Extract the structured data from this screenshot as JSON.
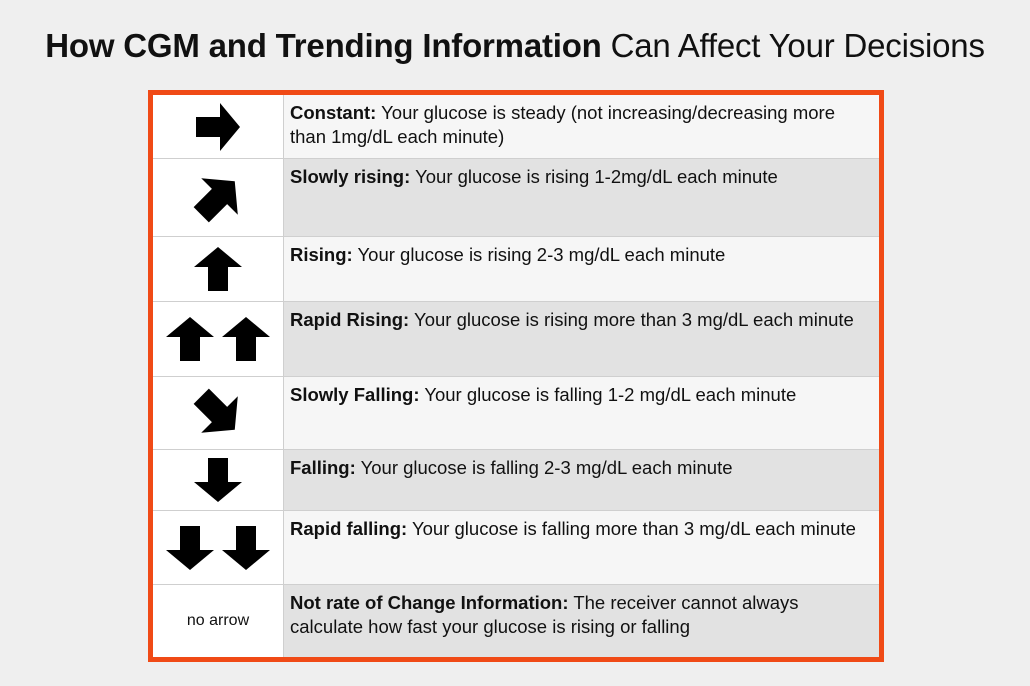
{
  "title": {
    "bold": "How CGM and Trending Information",
    "regular": "Can Affect Your Decisions"
  },
  "rows": [
    {
      "icon": "arrow-right-icon",
      "term": "Constant:",
      "desc": "Your glucose is steady (not increasing/decreasing more than 1mg/dL each minute)"
    },
    {
      "icon": "arrow-up-right-icon",
      "term": "Slowly rising:",
      "desc": "Your glucose is rising 1-2mg/dL each minute"
    },
    {
      "icon": "arrow-up-icon",
      "term": "Rising:",
      "desc": "Your glucose is rising 2-3 mg/dL each minute"
    },
    {
      "icon": "double-arrow-up-icon",
      "term": "Rapid Rising:",
      "desc": "Your glucose is rising more than 3 mg/dL each minute"
    },
    {
      "icon": "arrow-down-right-icon",
      "term": "Slowly Falling:",
      "desc": "Your glucose is falling 1-2 mg/dL each minute"
    },
    {
      "icon": "arrow-down-icon",
      "term": "Falling:",
      "desc": "Your glucose is falling 2-3 mg/dL each minute"
    },
    {
      "icon": "double-arrow-down-icon",
      "term": "Rapid falling:",
      "desc": "Your glucose is falling more than 3 mg/dL each minute"
    },
    {
      "icon": "no-arrow",
      "icon_label": "no arrow",
      "term": "Not rate of Change Information:",
      "desc": "The receiver cannot always calculate how fast your glucose is rising or falling"
    }
  ],
  "colors": {
    "frame": "#f04a16",
    "background": "#efefef",
    "row_light": "#f6f6f6",
    "row_dark": "#e2e2e2"
  }
}
